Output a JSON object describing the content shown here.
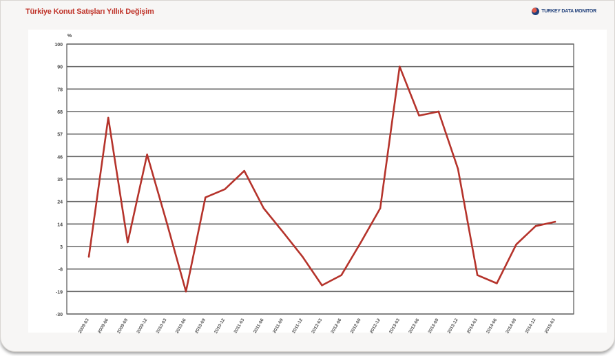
{
  "title": "Türkiye Konut Satışları Yıllık Değişim",
  "logo_text": "TURKEY DATA MONITOR",
  "colors": {
    "line": "#b5332b",
    "grid": "#666666",
    "title": "#c0362c"
  },
  "chart_data": {
    "type": "line",
    "title": "Türkiye Konut Satışları Yıllık Değişim",
    "ylabel": "%",
    "ylim": [
      -30,
      100
    ],
    "yticks": [
      100,
      90,
      78,
      68,
      57,
      46,
      35,
      24,
      14,
      3,
      -8,
      -19,
      -30
    ],
    "grid": true,
    "categories": [
      "2009-03",
      "2009-06",
      "2009-09",
      "2009-12",
      "2010-03",
      "2010-06",
      "2010-09",
      "2010-12",
      "2011-03",
      "2011-06",
      "2011-09",
      "2011-12",
      "2012-03",
      "2012-06",
      "2012-09",
      "2012-12",
      "2013-03",
      "2013-06",
      "2013-09",
      "2013-12",
      "2014-03",
      "2014-06",
      "2014-09",
      "2014-12",
      "2015-03"
    ],
    "series": [
      {
        "values": [
          -2,
          65,
          5,
          47,
          15,
          -19,
          26,
          30,
          39,
          21,
          10,
          -2,
          -16,
          -11,
          5,
          21,
          90,
          66,
          68,
          40,
          -11,
          -15,
          4,
          13,
          15
        ]
      }
    ]
  }
}
